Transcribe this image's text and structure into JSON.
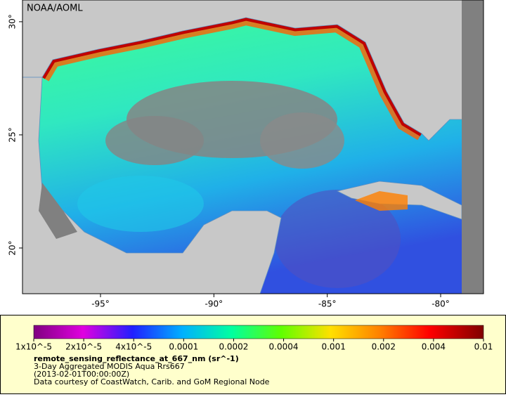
{
  "map": {
    "credit": "NOAA/AOML",
    "lon_range": [
      -98.44,
      -78.11
    ],
    "lat_range": [
      17.98,
      30.96
    ],
    "lon_ticks": [
      {
        "value": -95,
        "label": "-95°"
      },
      {
        "value": -90,
        "label": "-90°"
      },
      {
        "value": -85,
        "label": "-85°"
      },
      {
        "value": -80,
        "label": "-80°"
      }
    ],
    "lat_ticks": [
      {
        "value": 20,
        "label": "20°"
      },
      {
        "value": 25,
        "label": "25°"
      },
      {
        "value": 30,
        "label": "30°"
      }
    ]
  },
  "colorbar": {
    "ticks": [
      {
        "value": 1e-05,
        "label": "1x10^-5"
      },
      {
        "value": 2e-05,
        "label": "2x10^-5"
      },
      {
        "value": 4e-05,
        "label": "4x10^-5"
      },
      0.0001,
      0.0002,
      0.0004,
      0.001,
      0.002,
      0.004,
      0.01
    ]
  },
  "legend": {
    "variable": "remote_sensing_reflectance_at_667_nm (sr^-1)",
    "dataset": "3-Day Aggregated MODIS Aqua Rrs667",
    "time": "(2013-02-01T00:00:00Z)",
    "source": "Data courtesy of CoastWatch, Carib. and GoM Regional Node"
  }
}
